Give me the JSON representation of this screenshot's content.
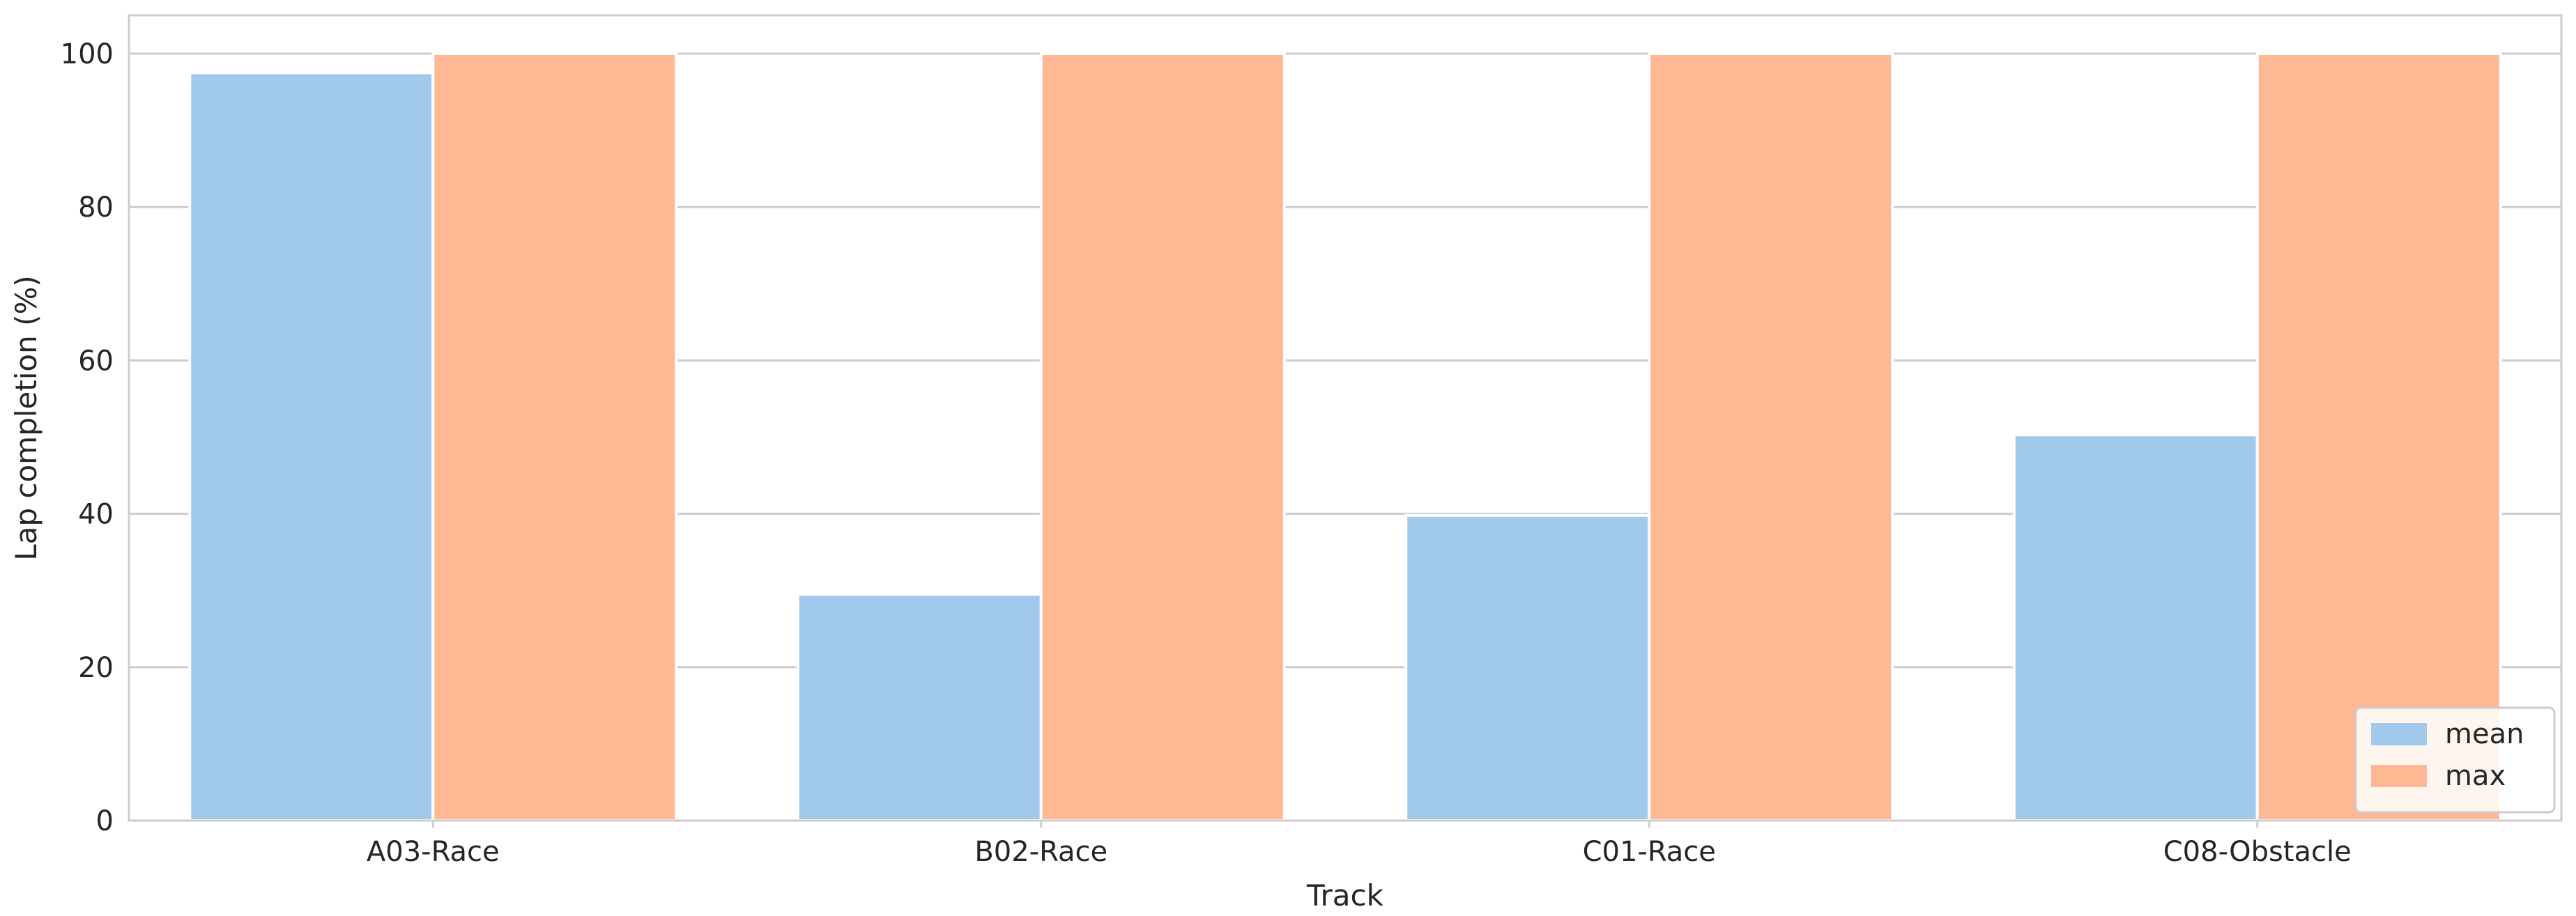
{
  "chart_data": {
    "type": "bar",
    "title": "",
    "xlabel": "Track",
    "ylabel": "Lap completion (%)",
    "categories": [
      "A03-Race",
      "B02-Race",
      "C01-Race",
      "C08-Obstacle"
    ],
    "series": [
      {
        "name": "mean",
        "values": [
          97.5,
          29.5,
          39.8,
          50.3
        ],
        "color": "#a1c9eb"
      },
      {
        "name": "max",
        "values": [
          100,
          100,
          100,
          100
        ],
        "color": "#ffb894"
      }
    ],
    "ylim": [
      0,
      105
    ],
    "yticks": [
      0,
      20,
      40,
      60,
      80,
      100
    ],
    "grid": "horizontal",
    "legend_position": "bottom-right"
  }
}
